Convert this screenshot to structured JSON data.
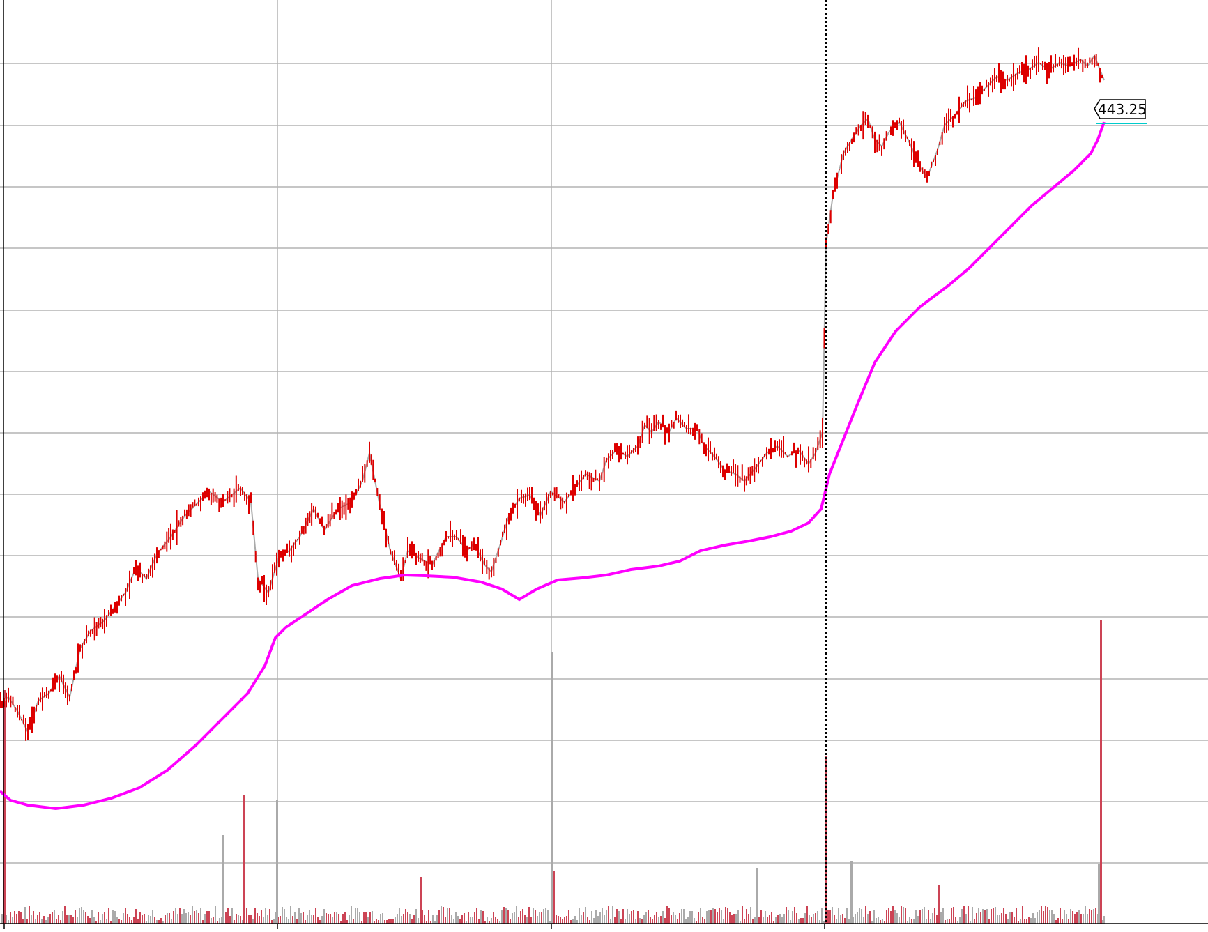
{
  "chart_data": {
    "type": "line",
    "last_price_label": "443.25",
    "last_price": 443.25,
    "colors": {
      "price_up": "#aaaaaa",
      "price_down": "#dd0000",
      "moving_average": "#ff00ff",
      "volume_up": "#aaaaaa",
      "volume_down": "#cc4455",
      "last_price_line": "#00cccc"
    },
    "grid": true,
    "series": [
      {
        "kind": "price",
        "points": [
          [
            0,
            1010
          ],
          [
            12,
            1000
          ],
          [
            25,
            1020
          ],
          [
            40,
            1050
          ],
          [
            55,
            1005
          ],
          [
            70,
            995
          ],
          [
            85,
            970
          ],
          [
            100,
            1000
          ],
          [
            115,
            930
          ],
          [
            130,
            905
          ],
          [
            150,
            890
          ],
          [
            165,
            870
          ],
          [
            180,
            850
          ],
          [
            195,
            815
          ],
          [
            210,
            830
          ],
          [
            225,
            795
          ],
          [
            245,
            770
          ],
          [
            265,
            740
          ],
          [
            285,
            720
          ],
          [
            300,
            705
          ],
          [
            320,
            720
          ],
          [
            345,
            700
          ],
          [
            360,
            720
          ],
          [
            370,
            830
          ],
          [
            385,
            850
          ],
          [
            400,
            800
          ],
          [
            415,
            790
          ],
          [
            430,
            770
          ],
          [
            450,
            730
          ],
          [
            465,
            760
          ],
          [
            485,
            730
          ],
          [
            505,
            720
          ],
          [
            520,
            690
          ],
          [
            530,
            650
          ],
          [
            538,
            690
          ],
          [
            548,
            740
          ],
          [
            560,
            790
          ],
          [
            575,
            830
          ],
          [
            585,
            790
          ],
          [
            600,
            800
          ],
          [
            620,
            810
          ],
          [
            640,
            770
          ],
          [
            655,
            770
          ],
          [
            670,
            790
          ],
          [
            680,
            780
          ],
          [
            695,
            810
          ],
          [
            705,
            820
          ],
          [
            718,
            780
          ],
          [
            730,
            740
          ],
          [
            745,
            715
          ],
          [
            760,
            710
          ],
          [
            775,
            740
          ],
          [
            790,
            705
          ],
          [
            810,
            720
          ],
          [
            825,
            700
          ],
          [
            840,
            680
          ],
          [
            860,
            690
          ],
          [
            870,
            660
          ],
          [
            885,
            645
          ],
          [
            900,
            655
          ],
          [
            915,
            640
          ],
          [
            925,
            610
          ],
          [
            935,
            620
          ],
          [
            945,
            605
          ],
          [
            960,
            620
          ],
          [
            970,
            600
          ],
          [
            985,
            615
          ],
          [
            1000,
            615
          ],
          [
            1010,
            640
          ],
          [
            1025,
            655
          ],
          [
            1040,
            675
          ],
          [
            1055,
            680
          ],
          [
            1068,
            690
          ],
          [
            1085,
            670
          ],
          [
            1100,
            650
          ],
          [
            1115,
            640
          ],
          [
            1130,
            655
          ],
          [
            1145,
            645
          ],
          [
            1160,
            665
          ],
          [
            1170,
            650
          ],
          [
            1180,
            620
          ],
          [
            1185,
            350
          ],
          [
            1195,
            280
          ],
          [
            1210,
            220
          ],
          [
            1225,
            195
          ],
          [
            1235,
            180
          ],
          [
            1245,
            170
          ],
          [
            1255,
            200
          ],
          [
            1265,
            210
          ],
          [
            1275,
            190
          ],
          [
            1290,
            175
          ],
          [
            1305,
            205
          ],
          [
            1320,
            240
          ],
          [
            1330,
            255
          ],
          [
            1345,
            215
          ],
          [
            1355,
            180
          ],
          [
            1370,
            165
          ],
          [
            1385,
            145
          ],
          [
            1400,
            140
          ],
          [
            1415,
            125
          ],
          [
            1430,
            110
          ],
          [
            1445,
            115
          ],
          [
            1460,
            105
          ],
          [
            1475,
            100
          ],
          [
            1490,
            90
          ],
          [
            1505,
            100
          ],
          [
            1520,
            90
          ],
          [
            1535,
            95
          ],
          [
            1550,
            85
          ],
          [
            1560,
            95
          ],
          [
            1570,
            80
          ],
          [
            1578,
            100
          ],
          [
            1584,
            115
          ]
        ]
      },
      {
        "kind": "moving_average",
        "points": [
          [
            0,
            1135
          ],
          [
            15,
            1148
          ],
          [
            40,
            1155
          ],
          [
            80,
            1160
          ],
          [
            120,
            1155
          ],
          [
            160,
            1145
          ],
          [
            200,
            1130
          ],
          [
            240,
            1105
          ],
          [
            280,
            1070
          ],
          [
            320,
            1030
          ],
          [
            355,
            995
          ],
          [
            380,
            955
          ],
          [
            395,
            915
          ],
          [
            410,
            900
          ],
          [
            440,
            880
          ],
          [
            470,
            860
          ],
          [
            505,
            840
          ],
          [
            545,
            830
          ],
          [
            580,
            825
          ],
          [
            610,
            826
          ],
          [
            650,
            828
          ],
          [
            690,
            835
          ],
          [
            720,
            845
          ],
          [
            745,
            860
          ],
          [
            770,
            845
          ],
          [
            800,
            832
          ],
          [
            835,
            829
          ],
          [
            870,
            825
          ],
          [
            905,
            817
          ],
          [
            945,
            812
          ],
          [
            975,
            805
          ],
          [
            1005,
            790
          ],
          [
            1040,
            782
          ],
          [
            1075,
            776
          ],
          [
            1105,
            770
          ],
          [
            1135,
            762
          ],
          [
            1160,
            750
          ],
          [
            1178,
            730
          ],
          [
            1190,
            680
          ],
          [
            1210,
            630
          ],
          [
            1230,
            580
          ],
          [
            1255,
            520
          ],
          [
            1285,
            475
          ],
          [
            1320,
            440
          ],
          [
            1360,
            410
          ],
          [
            1390,
            385
          ],
          [
            1420,
            355
          ],
          [
            1450,
            325
          ],
          [
            1480,
            295
          ],
          [
            1510,
            270
          ],
          [
            1540,
            245
          ],
          [
            1565,
            220
          ],
          [
            1575,
            200
          ],
          [
            1584,
            175
          ]
        ]
      }
    ],
    "volume": {
      "baseline": 1325,
      "spikes": [
        [
          5,
          990
        ],
        [
          318,
          1198
        ],
        [
          349,
          1140
        ],
        [
          396,
          1148
        ],
        [
          602,
          1258
        ],
        [
          790,
          935
        ],
        [
          793,
          1250
        ],
        [
          1085,
          1245
        ],
        [
          1183,
          1085
        ],
        [
          1220,
          1235
        ],
        [
          1346,
          1270
        ],
        [
          1575,
          1240
        ],
        [
          1578,
          890
        ]
      ]
    }
  }
}
